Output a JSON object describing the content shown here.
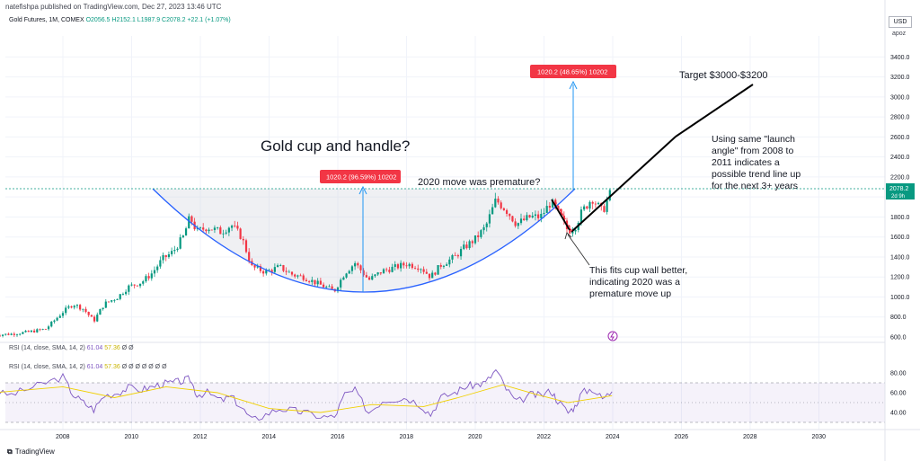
{
  "header": {
    "publisher_line": "natefishpa published on TradingView.com, Dec 27, 2023 13:46 UTC"
  },
  "legend": {
    "symbol": "Gold Futures, 1M, COMEX",
    "ohlc": "O2056.5 H2152.1 L1987.9 C2078.2 +22.1 (+1.07%)"
  },
  "price_scale": {
    "currency": "USD",
    "unit": "apoz",
    "last_price": "2078.2",
    "last_sub": "2d 9h"
  },
  "rsi_legends": [
    {
      "label": "RSI (14, close, SMA, 14, 2)",
      "v1": "61.04",
      "v2": "57.36",
      "rest": "Ø Ø"
    },
    {
      "label": "RSI (14, close, SMA, 14, 2)",
      "v1": "61.04",
      "v2": "57.36",
      "rest": "Ø Ø Ø Ø Ø Ø Ø"
    }
  ],
  "annotations": {
    "title": "Gold cup and handle?",
    "premature": "2020 move was premature?",
    "target": "Target $3000-$3200",
    "launch": [
      "Using same \"launch",
      "angle\" from 2008 to",
      "2011 indicates a",
      "possible trend line up",
      "for the next 3+ years"
    ],
    "cupfit": [
      "This fits cup wall better,",
      "indicating 2020 was a",
      "premature move up"
    ],
    "box1": "1020.2 (96.59%) 10202",
    "box2": "1020.2 (48.65%) 10202"
  },
  "footer": {
    "brand": "TradingView"
  },
  "chart_data": {
    "type": "candlestick",
    "title": "Gold Futures, 1M, COMEX",
    "ylim": [
      560,
      3560
    ],
    "y_ticks": [
      600,
      800,
      1000,
      1200,
      1400,
      1600,
      1800,
      2000,
      2200,
      2400,
      2600,
      2800,
      3000,
      3200,
      3400
    ],
    "x_ticks": [
      2008,
      2010,
      2012,
      2014,
      2016,
      2018,
      2020,
      2022,
      2024,
      2026,
      2028,
      2030
    ],
    "xlim": [
      2006.0,
      2031.6
    ],
    "series": [
      {
        "name": "Gold Futures",
        "points": [
          [
            2006.0,
            620
          ],
          [
            2006.5,
            630
          ],
          [
            2007.0,
            650
          ],
          [
            2007.5,
            680
          ],
          [
            2008.0,
            850
          ],
          [
            2008.3,
            930
          ],
          [
            2008.6,
            880
          ],
          [
            2008.9,
            760
          ],
          [
            2009.2,
            930
          ],
          [
            2009.6,
            1000
          ],
          [
            2009.9,
            1100
          ],
          [
            2010.3,
            1150
          ],
          [
            2010.6,
            1240
          ],
          [
            2010.9,
            1380
          ],
          [
            2011.2,
            1450
          ],
          [
            2011.5,
            1600
          ],
          [
            2011.7,
            1800
          ],
          [
            2011.9,
            1650
          ],
          [
            2012.2,
            1700
          ],
          [
            2012.6,
            1650
          ],
          [
            2012.9,
            1720
          ],
          [
            2013.2,
            1600
          ],
          [
            2013.5,
            1300
          ],
          [
            2013.9,
            1250
          ],
          [
            2014.3,
            1300
          ],
          [
            2014.7,
            1220
          ],
          [
            2015.0,
            1200
          ],
          [
            2015.5,
            1120
          ],
          [
            2015.9,
            1060
          ],
          [
            2016.2,
            1240
          ],
          [
            2016.5,
            1340
          ],
          [
            2016.9,
            1170
          ],
          [
            2017.3,
            1260
          ],
          [
            2017.7,
            1300
          ],
          [
            2018.0,
            1330
          ],
          [
            2018.4,
            1300
          ],
          [
            2018.7,
            1200
          ],
          [
            2019.0,
            1320
          ],
          [
            2019.4,
            1400
          ],
          [
            2019.7,
            1500
          ],
          [
            2020.0,
            1580
          ],
          [
            2020.3,
            1700
          ],
          [
            2020.6,
            1970
          ],
          [
            2020.9,
            1870
          ],
          [
            2021.2,
            1730
          ],
          [
            2021.6,
            1800
          ],
          [
            2021.9,
            1800
          ],
          [
            2022.2,
            1950
          ],
          [
            2022.4,
            1850
          ],
          [
            2022.7,
            1660
          ],
          [
            2022.9,
            1700
          ],
          [
            2023.1,
            1850
          ],
          [
            2023.4,
            1990
          ],
          [
            2023.7,
            1850
          ],
          [
            2023.98,
            2078
          ]
        ]
      }
    ],
    "rsi": {
      "range": [
        20,
        90
      ],
      "ticks": [
        40,
        60,
        80
      ],
      "band": [
        30,
        70
      ],
      "values": [
        [
          2006.0,
          60
        ],
        [
          2006.5,
          58
        ],
        [
          2007.0,
          64
        ],
        [
          2007.5,
          70
        ],
        [
          2008.0,
          76
        ],
        [
          2008.3,
          58
        ],
        [
          2008.6,
          50
        ],
        [
          2008.9,
          43
        ],
        [
          2009.2,
          57
        ],
        [
          2009.6,
          60
        ],
        [
          2009.9,
          65
        ],
        [
          2010.3,
          63
        ],
        [
          2010.6,
          66
        ],
        [
          2010.9,
          69
        ],
        [
          2011.2,
          70
        ],
        [
          2011.5,
          72
        ],
        [
          2011.7,
          74
        ],
        [
          2011.9,
          58
        ],
        [
          2012.2,
          60
        ],
        [
          2012.6,
          52
        ],
        [
          2012.9,
          56
        ],
        [
          2013.2,
          45
        ],
        [
          2013.5,
          32
        ],
        [
          2013.9,
          38
        ],
        [
          2014.3,
          44
        ],
        [
          2014.7,
          42
        ],
        [
          2015.0,
          40
        ],
        [
          2015.5,
          36
        ],
        [
          2015.9,
          35
        ],
        [
          2016.2,
          58
        ],
        [
          2016.5,
          62
        ],
        [
          2016.9,
          40
        ],
        [
          2017.3,
          52
        ],
        [
          2017.7,
          54
        ],
        [
          2018.0,
          55
        ],
        [
          2018.4,
          48
        ],
        [
          2018.7,
          38
        ],
        [
          2019.0,
          55
        ],
        [
          2019.4,
          60
        ],
        [
          2019.7,
          66
        ],
        [
          2020.0,
          68
        ],
        [
          2020.3,
          70
        ],
        [
          2020.6,
          83
        ],
        [
          2020.9,
          64
        ],
        [
          2021.2,
          50
        ],
        [
          2021.6,
          58
        ],
        [
          2021.9,
          57
        ],
        [
          2022.2,
          62
        ],
        [
          2022.4,
          52
        ],
        [
          2022.7,
          40
        ],
        [
          2022.9,
          46
        ],
        [
          2023.1,
          60
        ],
        [
          2023.4,
          64
        ],
        [
          2023.7,
          54
        ],
        [
          2023.98,
          61
        ]
      ]
    },
    "rsi_sma": [
      [
        2006.0,
        60
      ],
      [
        2008.0,
        66
      ],
      [
        2009.5,
        55
      ],
      [
        2011.0,
        66
      ],
      [
        2012.5,
        60
      ],
      [
        2014.0,
        44
      ],
      [
        2015.5,
        40
      ],
      [
        2017.0,
        48
      ],
      [
        2018.5,
        46
      ],
      [
        2019.5,
        55
      ],
      [
        2020.8,
        68
      ],
      [
        2021.8,
        58
      ],
      [
        2022.7,
        50
      ],
      [
        2023.98,
        57
      ]
    ]
  }
}
